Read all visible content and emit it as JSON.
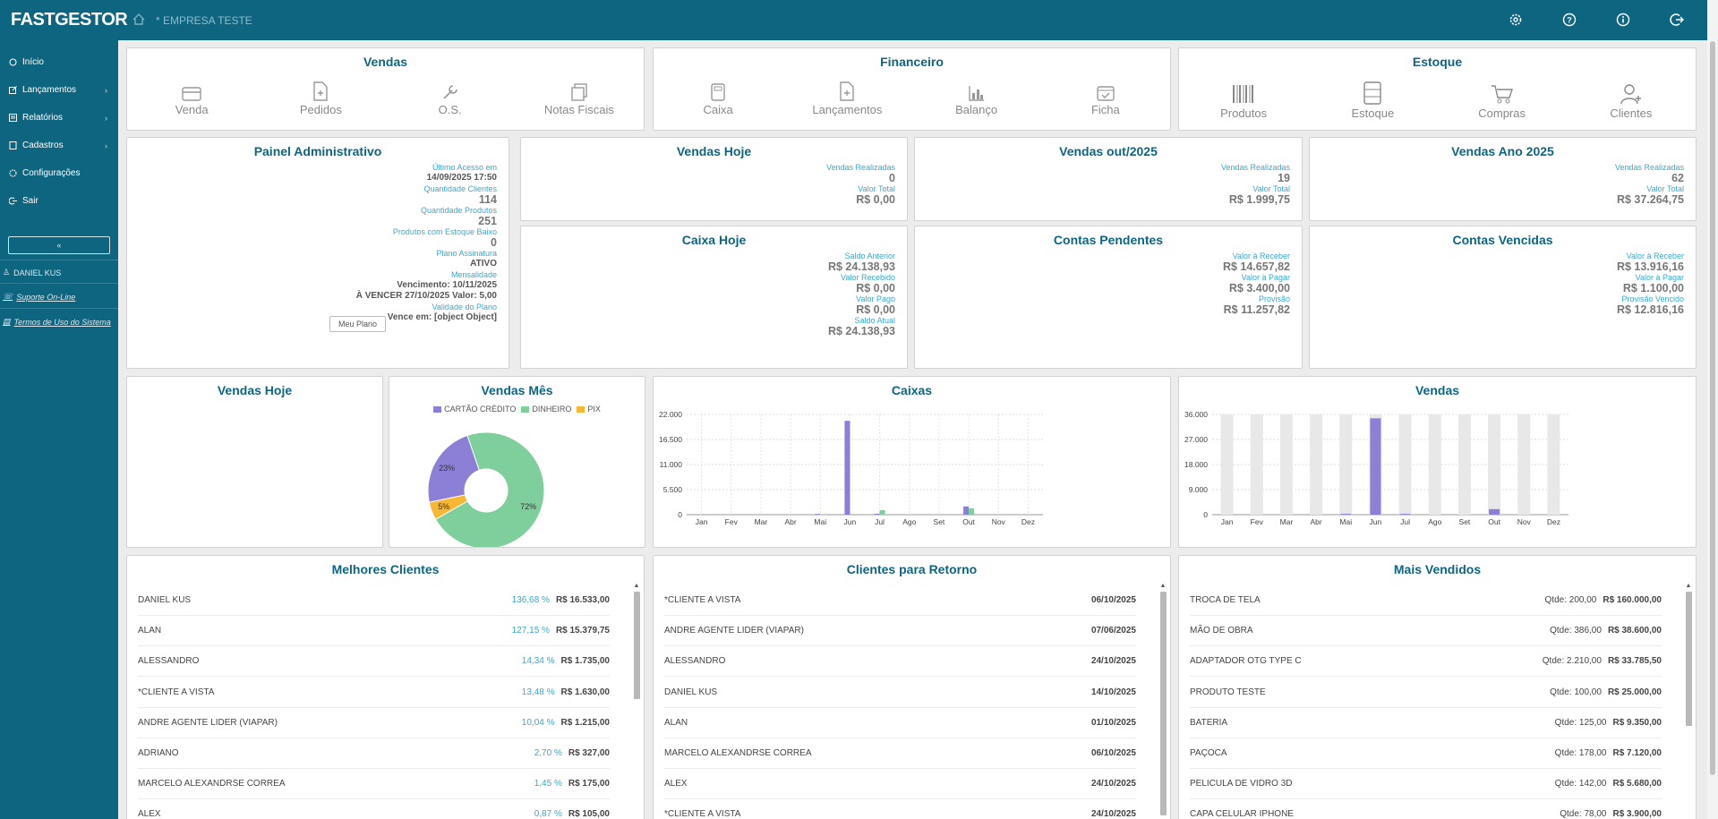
{
  "app": {
    "logo": "FASTGESTOR",
    "company": "* EMPRESA TESTE"
  },
  "sidebar": {
    "items": [
      {
        "label": "Início",
        "icon": "home-circle-icon",
        "chevron": ""
      },
      {
        "label": "Lançamentos",
        "icon": "edit-icon",
        "chevron": "›"
      },
      {
        "label": "Relatórios",
        "icon": "list-icon",
        "chevron": "›"
      },
      {
        "label": "Cadastros",
        "icon": "book-icon",
        "chevron": "›"
      },
      {
        "label": "Configurações",
        "icon": "gear-icon",
        "chevron": ""
      },
      {
        "label": "Sair",
        "icon": "logout-icon",
        "chevron": ""
      }
    ],
    "collapse_label": "«",
    "user": "DANIEL KUS",
    "support": "Suporte On-Line",
    "terms": "Termos de Uso do Sistema"
  },
  "shortcuts": {
    "vendas": {
      "title": "Vendas",
      "items": [
        {
          "label": "Venda",
          "icon": "card-icon"
        },
        {
          "label": "Pedidos",
          "icon": "file-plus-icon"
        },
        {
          "label": "O.S.",
          "icon": "tools-icon"
        },
        {
          "label": "Notas Fiscais",
          "icon": "documents-icon"
        }
      ]
    },
    "financeiro": {
      "title": "Financeiro",
      "items": [
        {
          "label": "Caixa",
          "icon": "calculator-icon"
        },
        {
          "label": "Lançamentos",
          "icon": "file-plus-icon"
        },
        {
          "label": "Balanço",
          "icon": "bar-chart-icon"
        },
        {
          "label": "Ficha",
          "icon": "calendar-check-icon"
        }
      ]
    },
    "estoque": {
      "title": "Estoque",
      "items": [
        {
          "label": "Produtos",
          "icon": "barcode-icon"
        },
        {
          "label": "Estoque",
          "icon": "cabinet-icon"
        },
        {
          "label": "Compras",
          "icon": "cart-icon"
        },
        {
          "label": "Clientes",
          "icon": "user-plus-icon"
        }
      ]
    }
  },
  "admin": {
    "title": "Painel Administrativo",
    "rows": [
      {
        "label": "Último Acesso em",
        "value": "14/09/2025 17:50"
      },
      {
        "label": "Quantidade Clientes",
        "value": "114"
      },
      {
        "label": "Quantidade Produtos",
        "value": "251"
      },
      {
        "label": "Produtos com Estoque Baixo",
        "value": "0"
      },
      {
        "label": "Plano Assinatura",
        "value": "ATIVO"
      },
      {
        "label": "Mensalidade",
        "value": "Vencimento: 10/11/2025",
        "value2": "À VENCER 27/10/2025  Valor: 5,00"
      },
      {
        "label": "Validade do Plano",
        "value": "Vence em: [object Object]"
      }
    ],
    "button": "Meu Plano"
  },
  "kpis": [
    {
      "title": "Vendas Hoje",
      "rows": [
        {
          "label": "Vendas Realizadas",
          "value": "0"
        },
        {
          "label": "Valor Total",
          "value": "R$ 0,00"
        }
      ]
    },
    {
      "title": "Vendas out/2025",
      "rows": [
        {
          "label": "Vendas Realizadas",
          "value": "19"
        },
        {
          "label": "Valor Total",
          "value": "R$ 1.999,75"
        }
      ]
    },
    {
      "title": "Vendas Ano 2025",
      "rows": [
        {
          "label": "Vendas Realizadas",
          "value": "62"
        },
        {
          "label": "Valor Total",
          "value": "R$ 37.264,75"
        }
      ]
    },
    {
      "title": "Caixa Hoje",
      "rows": [
        {
          "label": "Saldo Anterior",
          "value": "R$ 24.138,93"
        },
        {
          "label": "Valor Recebido",
          "value": "R$ 0,00"
        },
        {
          "label": "Valor Pago",
          "value": "R$ 0,00"
        },
        {
          "label": "Saldo Atual",
          "value": "R$ 24.138,93"
        }
      ]
    },
    {
      "title": "Contas Pendentes",
      "rows": [
        {
          "label": "Valor à Receber",
          "value": "R$ 14.657,82"
        },
        {
          "label": "Valor à Pagar",
          "value": "R$ 3.400,00"
        },
        {
          "label": "Provisão",
          "value": "R$ 11.257,82"
        }
      ]
    },
    {
      "title": "Contas Vencidas",
      "rows": [
        {
          "label": "Valor à Receber",
          "value": "R$ 13.916,16"
        },
        {
          "label": "Valor à Pagar",
          "value": "R$ 1.100,00"
        },
        {
          "label": "Provisão Vencido",
          "value": "R$ 12.816,16"
        }
      ]
    }
  ],
  "charts_titles": {
    "vendas_hoje": "Vendas Hoje",
    "vendas_mes": "Vendas Mês",
    "caixas": "Caixas",
    "vendas": "Vendas"
  },
  "chart_data": [
    {
      "type": "pie",
      "title": "Vendas Mês",
      "categories": [
        "CARTÃO CRÉDITO",
        "DINHEIRO",
        "PIX"
      ],
      "values": [
        23,
        72,
        5
      ],
      "labels": [
        "23%",
        "72%",
        "5%"
      ],
      "colors": [
        "#8b7fd6",
        "#7fcf9c",
        "#f7b733"
      ],
      "legend": "top"
    },
    {
      "type": "bar",
      "title": "Caixas",
      "categories": [
        "Jan",
        "Fev",
        "Mar",
        "Abr",
        "Mai",
        "Jun",
        "Jul",
        "Ago",
        "Set",
        "Out",
        "Nov",
        "Dez"
      ],
      "ylim": [
        0,
        22000
      ],
      "yticks": [
        "0",
        "5.500",
        "11.000",
        "16.500",
        "22.000"
      ],
      "series": [
        {
          "values": [
            0,
            0,
            0,
            0,
            150,
            20600,
            200,
            0,
            0,
            1800,
            0,
            0
          ],
          "color": "#8b7fd6"
        },
        {
          "values": [
            0,
            0,
            0,
            0,
            0,
            0,
            1000,
            0,
            0,
            1400,
            0,
            0
          ],
          "color": "#7fcf9c"
        }
      ],
      "grid": true
    },
    {
      "type": "bar",
      "title": "Vendas",
      "categories": [
        "Jan",
        "Fev",
        "Mar",
        "Abr",
        "Mai",
        "Jun",
        "Jul",
        "Ago",
        "Set",
        "Out",
        "Nov",
        "Dez"
      ],
      "ylim": [
        0,
        36000
      ],
      "yticks": [
        "0",
        "9.000",
        "18.000",
        "27.000",
        "36.000"
      ],
      "series": [
        {
          "values": [
            0,
            0,
            0,
            0,
            300,
            34600,
            300,
            0,
            0,
            2000,
            0,
            0
          ],
          "color": "#8b7fd6"
        }
      ],
      "background_bars": true
    }
  ],
  "melhores_clientes": {
    "title": "Melhores Clientes",
    "rows": [
      {
        "name": "DANIEL KUS",
        "pct": "136,68 %",
        "amount": "R$ 16.533,00"
      },
      {
        "name": "ALAN",
        "pct": "127,15 %",
        "amount": "R$ 15.379,75"
      },
      {
        "name": "ALESSANDRO",
        "pct": "14,34 %",
        "amount": "R$ 1.735,00"
      },
      {
        "name": "*CLIENTE A VISTA",
        "pct": "13,48 %",
        "amount": "R$ 1.630,00"
      },
      {
        "name": "ANDRE AGENTE LIDER (VIAPAR)",
        "pct": "10,04 %",
        "amount": "R$ 1.215,00"
      },
      {
        "name": "ADRIANO",
        "pct": "2,70 %",
        "amount": "R$ 327,00"
      },
      {
        "name": "MARCELO ALEXANDRSE CORREA",
        "pct": "1,45 %",
        "amount": "R$ 175,00"
      },
      {
        "name": "ALEX",
        "pct": "0,87 %",
        "amount": "R$ 105,00"
      }
    ]
  },
  "clientes_retorno": {
    "title": "Clientes para Retorno",
    "rows": [
      {
        "name": "*CLIENTE A VISTA",
        "date": "06/10/2025"
      },
      {
        "name": "ANDRE AGENTE LIDER (VIAPAR)",
        "date": "07/06/2025"
      },
      {
        "name": "ALESSANDRO",
        "date": "24/10/2025"
      },
      {
        "name": "DANIEL KUS",
        "date": "14/10/2025"
      },
      {
        "name": "ALAN",
        "date": "01/10/2025"
      },
      {
        "name": "MARCELO ALEXANDRSE CORREA",
        "date": "06/10/2025"
      },
      {
        "name": "ALEX",
        "date": "24/10/2025"
      },
      {
        "name": "*CLIENTE A VISTA",
        "date": "24/10/2025"
      }
    ]
  },
  "mais_vendidos": {
    "title": "Mais Vendidos",
    "rows": [
      {
        "name": "TROCA DE TELA",
        "qty": "Qtde: 200,00",
        "amount": "R$ 160.000,00"
      },
      {
        "name": "MÃO DE OBRA",
        "qty": "Qtde: 386,00",
        "amount": "R$ 38.600,00"
      },
      {
        "name": "ADAPTADOR OTG TYPE C",
        "qty": "Qtde: 2.210,00",
        "amount": "R$ 33.785,50"
      },
      {
        "name": "PRODUTO TESTE",
        "qty": "Qtde: 100,00",
        "amount": "R$ 25.000,00"
      },
      {
        "name": "BATERIA",
        "qty": "Qtde: 125,00",
        "amount": "R$ 9.350,00"
      },
      {
        "name": "PAÇOCA",
        "qty": "Qtde: 178,00",
        "amount": "R$ 7.120,00"
      },
      {
        "name": "PELICULA DE VIDRO 3D",
        "qty": "Qtde: 142,00",
        "amount": "R$ 5.680,00"
      },
      {
        "name": "CAPA CELULAR IPHONE",
        "qty": "Qtde: 78,00",
        "amount": "R$ 3.900,00"
      }
    ]
  }
}
